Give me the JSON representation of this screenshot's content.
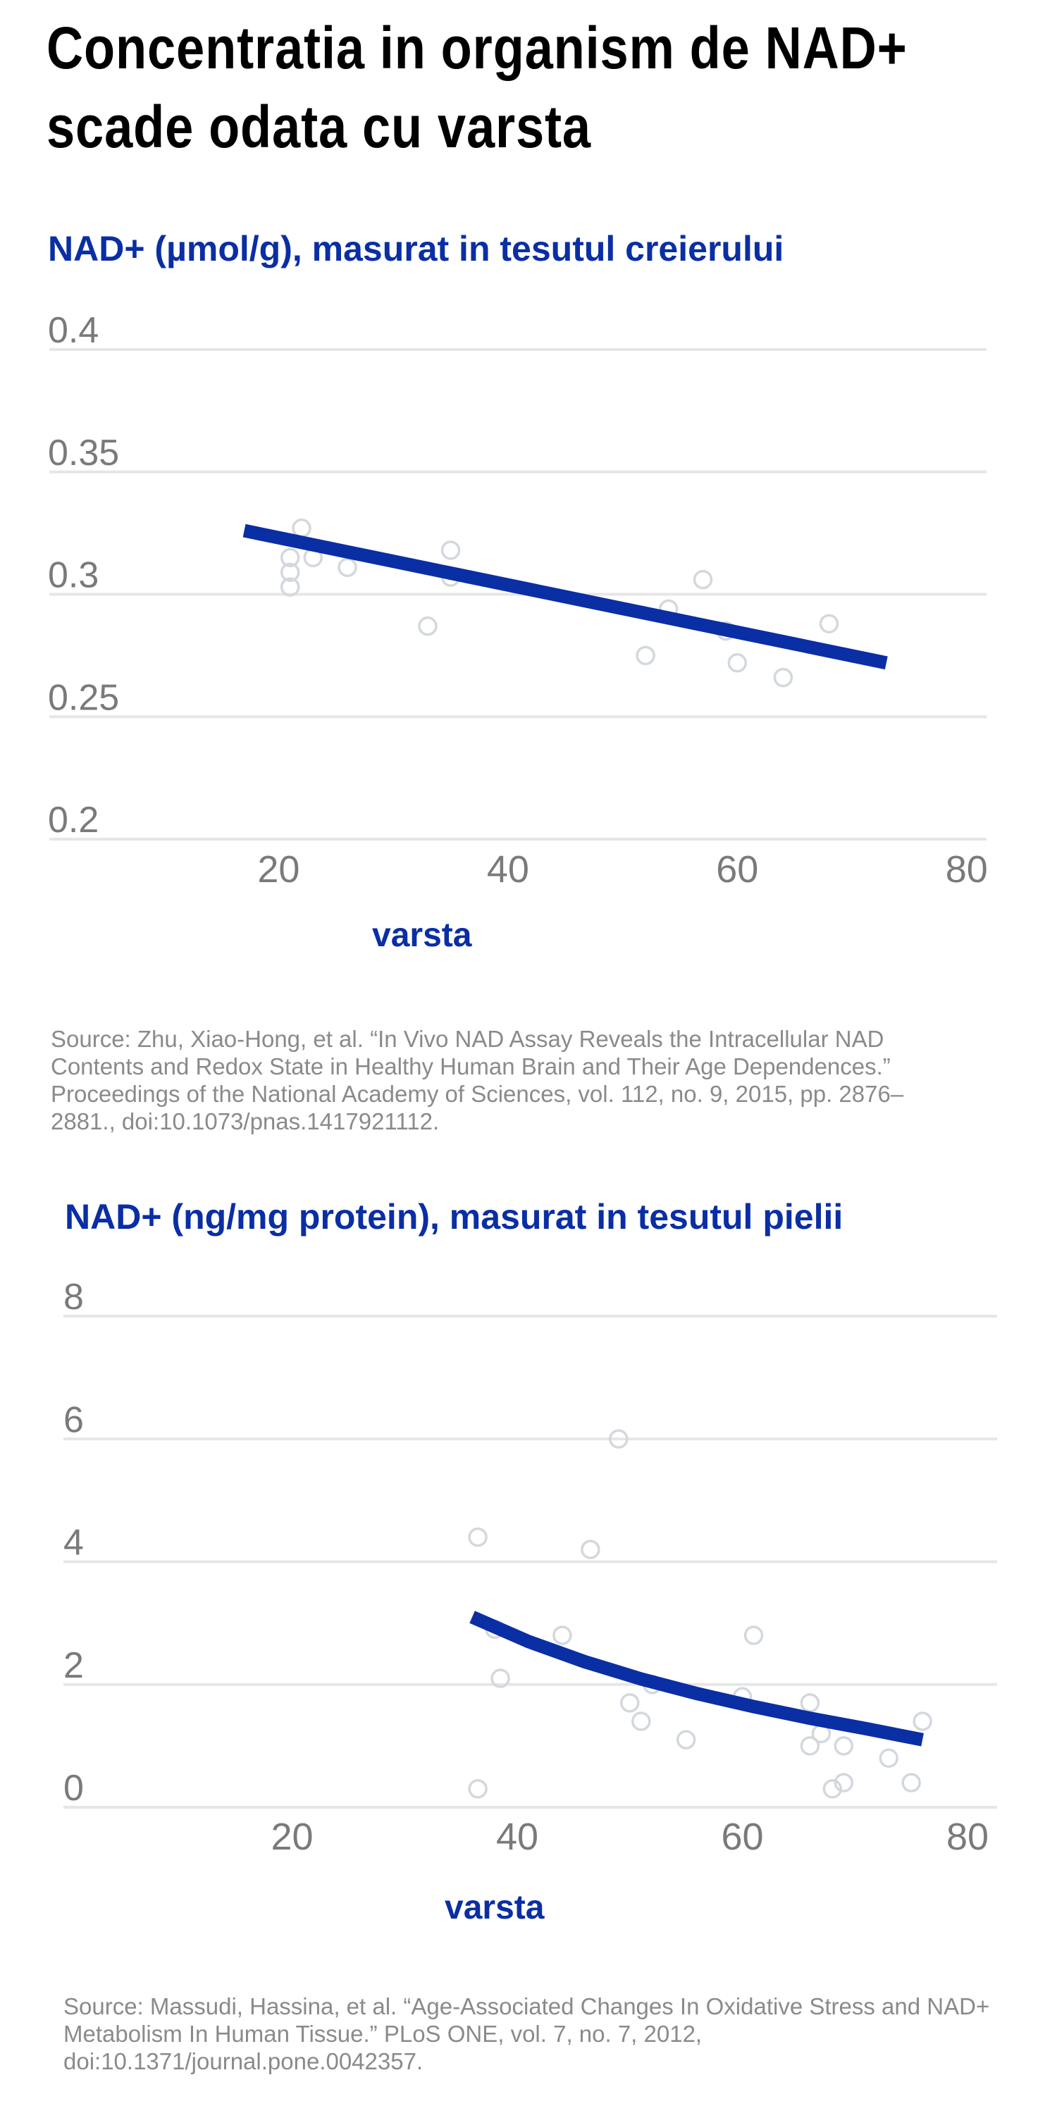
{
  "page": {
    "title_lines": [
      "Concentratia in organism de NAD+",
      "scade odata cu varsta"
    ]
  },
  "colors": {
    "accent": "#0a2ea4",
    "grid": "#e6e6e6",
    "tick": "#7a7a7a",
    "point": "#d3d8de",
    "source": "#8a8a8a"
  },
  "chart_data": [
    {
      "type": "scatter",
      "title": "NAD+ (µmol/g),  masurat in tesutul creierului",
      "xlabel": "varsta",
      "ylabel": "NAD+ (µmol/g)",
      "xlim": [
        0,
        81
      ],
      "ylim": [
        0.2,
        0.4
      ],
      "xticks": [
        20,
        40,
        60,
        80
      ],
      "ytick_labels": [
        "0.4",
        "0.35",
        "0.3",
        "0.25",
        "0.2"
      ],
      "yticks": [
        0.4,
        0.35,
        0.3,
        0.25,
        0.2
      ],
      "points": {
        "x": [
          21,
          21,
          21,
          22,
          23,
          26,
          33,
          35,
          35,
          52,
          54,
          57,
          59,
          60,
          64,
          68
        ],
        "y": [
          0.309,
          0.303,
          0.315,
          0.327,
          0.315,
          0.311,
          0.287,
          0.307,
          0.318,
          0.275,
          0.294,
          0.306,
          0.285,
          0.272,
          0.266,
          0.288
        ]
      },
      "trend": {
        "x": [
          17,
          73
        ],
        "y": [
          0.326,
          0.272
        ]
      },
      "source": "Source: Zhu, Xiao-Hong, et al. “In Vivo NAD Assay Reveals the Intracellular NAD Contents and Redox State in Healthy Human Brain and Their Age Dependences.” Proceedings of the National Academy of Sciences, vol. 112, no. 9, 2015, pp. 2876–2881., doi:10.1073/pnas.1417921112."
    },
    {
      "type": "scatter",
      "title": "NAD+ (ng/mg protein), masurat in tesutul pielii",
      "xlabel": "varsta",
      "ylabel": "NAD+ (ng/mg protein)",
      "xlim": [
        0,
        82
      ],
      "ylim": [
        0,
        8
      ],
      "xticks": [
        20,
        40,
        60,
        80
      ],
      "ytick_labels": [
        "8",
        "6",
        "4",
        "2",
        "0"
      ],
      "yticks": [
        8,
        6,
        4,
        2,
        0
      ],
      "points": {
        "x": [
          36.5,
          36.5,
          38,
          38.5,
          44,
          46.5,
          49,
          50,
          51,
          52,
          55,
          60,
          61,
          66,
          66,
          67,
          68,
          69,
          69,
          73,
          75,
          76
        ],
        "y": [
          0.3,
          4.4,
          2.9,
          2.1,
          2.8,
          4.2,
          6.0,
          1.7,
          1.4,
          2.0,
          1.1,
          1.8,
          2.8,
          1.7,
          1.0,
          1.2,
          0.3,
          0.4,
          1.0,
          0.8,
          0.4,
          1.4
        ]
      },
      "trend": {
        "x": [
          36,
          41,
          46,
          51,
          56,
          61,
          66,
          71,
          76
        ],
        "y": [
          3.1,
          2.7,
          2.37,
          2.09,
          1.85,
          1.64,
          1.45,
          1.28,
          1.1
        ]
      },
      "source": "Source: Massudi, Hassina, et al. “Age-Associated Changes In Oxidative Stress and NAD+ Metabolism In Human Tissue.” PLoS ONE, vol. 7, no. 7, 2012, doi:10.1371/journal.pone.0042357."
    }
  ]
}
